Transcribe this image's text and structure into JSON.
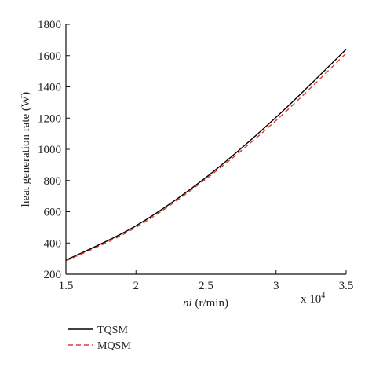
{
  "chart_data": {
    "type": "line",
    "title": "",
    "xlabel_italic": "ni",
    "xlabel_rest": " (r/min)",
    "ylabel": "heat generation rate (W)",
    "x_multiplier": "x 10",
    "x_multiplier_exp": "4",
    "xlim": [
      1.5,
      3.5
    ],
    "ylim": [
      200,
      1800
    ],
    "x_ticks": [
      "1.5",
      "2",
      "2.5",
      "3",
      "3.5"
    ],
    "y_ticks": [
      "200",
      "400",
      "600",
      "800",
      "1000",
      "1200",
      "1400",
      "1600",
      "1800"
    ],
    "grid": false,
    "legend_position": "below-left",
    "series": [
      {
        "name": "TQSM",
        "color": "#000000",
        "dash": "solid",
        "x": [
          1.5,
          2.0,
          2.5,
          3.0,
          3.5
        ],
        "y": [
          290,
          510,
          820,
          1205,
          1640
        ]
      },
      {
        "name": "MQSM",
        "color": "#e8392a",
        "dash": "dashed",
        "x": [
          1.5,
          2.0,
          2.5,
          3.0,
          3.5
        ],
        "y": [
          285,
          500,
          810,
          1185,
          1615
        ]
      }
    ]
  }
}
